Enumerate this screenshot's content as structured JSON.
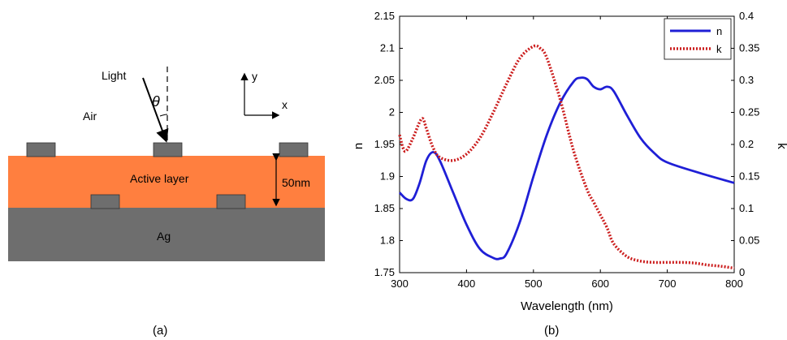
{
  "panel_a": {
    "label": "(a)",
    "light_label": "Light",
    "theta_label": "θ",
    "air_label": "Air",
    "active_layer_label": "Active layer",
    "thickness_label": "50nm",
    "metal_label": "Ag",
    "axis_y_label": "y",
    "axis_x_label": "x",
    "colors": {
      "active_layer": "#ff7f3f",
      "metal": "#6e6e6e",
      "grating": "#6e6e6e"
    }
  },
  "panel_b": {
    "label": "(b)"
  },
  "chart_data": {
    "type": "line",
    "title": "",
    "xlabel": "Wavelength (nm)",
    "ylabel_left": "n",
    "ylabel_right": "k",
    "xlim": [
      300,
      800
    ],
    "ylim_left": [
      1.75,
      2.15
    ],
    "ylim_right": [
      0,
      0.4
    ],
    "xticks": [
      "300",
      "400",
      "500",
      "600",
      "700",
      "800"
    ],
    "yticks_left": [
      "1.75",
      "1.8",
      "1.85",
      "1.9",
      "1.95",
      "2",
      "2.05",
      "2.1",
      "2.15"
    ],
    "yticks_right": [
      "0",
      "0.05",
      "0.1",
      "0.15",
      "0.2",
      "0.25",
      "0.3",
      "0.35",
      "0.4"
    ],
    "grid": false,
    "legend_position": "top-right",
    "series": [
      {
        "name": "n",
        "axis": "left",
        "color": "#1f1fd6",
        "style": "solid",
        "x": [
          300,
          310,
          320,
          330,
          340,
          350,
          360,
          380,
          400,
          420,
          440,
          450,
          460,
          480,
          500,
          520,
          540,
          560,
          570,
          580,
          590,
          600,
          610,
          620,
          640,
          660,
          680,
          700,
          750,
          800
        ],
        "y": [
          1.875,
          1.865,
          1.865,
          1.89,
          1.925,
          1.938,
          1.925,
          1.875,
          1.825,
          1.787,
          1.773,
          1.772,
          1.78,
          1.83,
          1.9,
          1.965,
          2.015,
          2.048,
          2.054,
          2.052,
          2.04,
          2.036,
          2.04,
          2.033,
          1.995,
          1.96,
          1.937,
          1.922,
          1.905,
          1.89
        ]
      },
      {
        "name": "k",
        "axis": "right",
        "color": "#cc1f1f",
        "style": "dotted",
        "x": [
          300,
          305,
          310,
          320,
          330,
          335,
          340,
          350,
          360,
          380,
          400,
          420,
          440,
          460,
          480,
          500,
          510,
          520,
          540,
          560,
          580,
          590,
          600,
          610,
          620,
          640,
          660,
          680,
          700,
          720,
          740,
          760,
          780,
          800
        ],
        "y": [
          0.215,
          0.195,
          0.19,
          0.21,
          0.235,
          0.24,
          0.225,
          0.195,
          0.18,
          0.175,
          0.185,
          0.21,
          0.25,
          0.295,
          0.335,
          0.353,
          0.35,
          0.335,
          0.27,
          0.19,
          0.13,
          0.11,
          0.09,
          0.07,
          0.045,
          0.025,
          0.018,
          0.016,
          0.016,
          0.016,
          0.015,
          0.012,
          0.01,
          0.007
        ]
      }
    ]
  }
}
